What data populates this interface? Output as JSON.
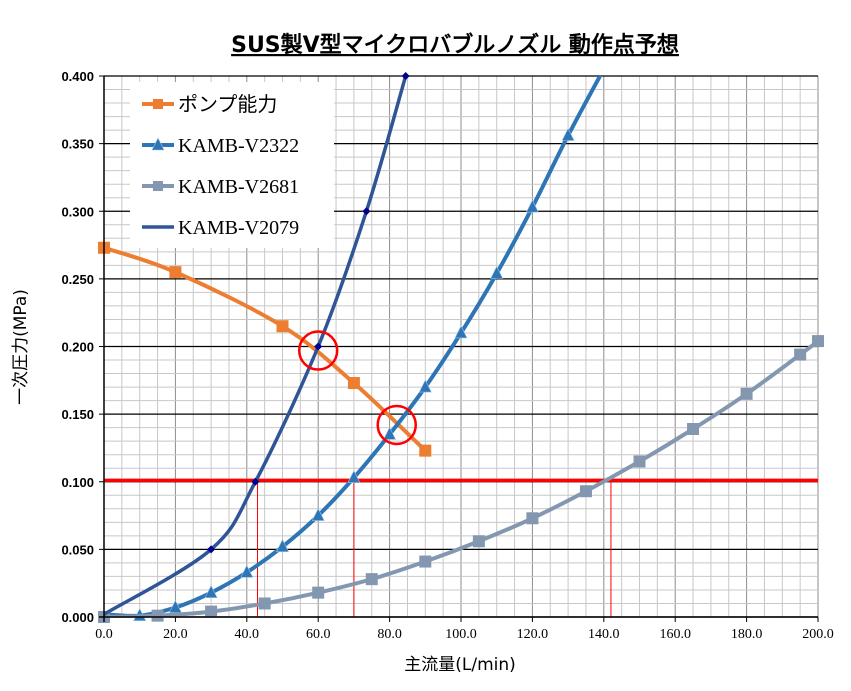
{
  "chart_data": {
    "type": "line",
    "title": "SUS製V型マイクロバブルノズル 動作点予想",
    "xlabel": "主流量(L/min)",
    "ylabel": "一次圧力(MPa)",
    "xlim": [
      0,
      200
    ],
    "ylim": [
      0,
      0.4
    ],
    "x_ticks": [
      "0.0",
      "20.0",
      "40.0",
      "60.0",
      "80.0",
      "100.0",
      "120.0",
      "140.0",
      "160.0",
      "180.0",
      "200.0"
    ],
    "y_ticks": [
      "0.000",
      "0.050",
      "0.100",
      "0.150",
      "0.200",
      "0.250",
      "0.300",
      "0.350",
      "0.400"
    ],
    "grid": true,
    "legend_placement": "top-left",
    "series": [
      {
        "name": "ポンプ能力",
        "color": "#ED7D31",
        "marker": "square",
        "smooth": true,
        "points": [
          [
            0,
            0.273
          ],
          [
            20,
            0.255
          ],
          [
            50,
            0.215
          ],
          [
            70,
            0.173
          ],
          [
            90,
            0.123
          ]
        ]
      },
      {
        "name": "KAMB-V2322",
        "color": "#2E75B6",
        "marker": "triangle",
        "smooth": true,
        "unmarked_start": [
          0,
          0.002
        ],
        "points": [
          [
            10,
            0.001
          ],
          [
            20,
            0.007
          ],
          [
            30,
            0.018
          ],
          [
            40,
            0.033
          ],
          [
            50,
            0.052
          ],
          [
            60,
            0.075
          ],
          [
            70,
            0.103
          ],
          [
            80,
            0.135
          ],
          [
            90,
            0.17
          ],
          [
            100,
            0.21
          ],
          [
            110,
            0.254
          ],
          [
            120,
            0.303
          ],
          [
            130,
            0.356
          ],
          [
            141,
            0.41
          ]
        ]
      },
      {
        "name": "KAMB-V2681",
        "color": "#8497B0",
        "marker": "square",
        "smooth": true,
        "points": [
          [
            0,
            0
          ],
          [
            15,
            0.001
          ],
          [
            30,
            0.004
          ],
          [
            45,
            0.01
          ],
          [
            60,
            0.018
          ],
          [
            75,
            0.028
          ],
          [
            90,
            0.041
          ],
          [
            105,
            0.056
          ],
          [
            120,
            0.073
          ],
          [
            135,
            0.093
          ],
          [
            150,
            0.115
          ],
          [
            165,
            0.139
          ],
          [
            180,
            0.165
          ],
          [
            195,
            0.194
          ],
          [
            200,
            0.204
          ]
        ]
      },
      {
        "name": "KAMB-V2079",
        "color": "#2F5597",
        "marker": "diamond",
        "marker_color": "#00008B",
        "smooth": true,
        "unmarked_start": [
          0,
          0.002
        ],
        "points": [
          [
            30,
            0.05
          ],
          [
            42.4,
            0.1
          ],
          [
            60,
            0.2
          ],
          [
            73.5,
            0.3
          ],
          [
            84.5,
            0.4
          ]
        ]
      }
    ],
    "reference_line": {
      "y": 0.101,
      "color": "#FF0000"
    },
    "drop_lines_x": [
      43,
      70,
      142
    ],
    "highlight_circles": [
      [
        60,
        0.197
      ],
      [
        82,
        0.142
      ]
    ]
  }
}
